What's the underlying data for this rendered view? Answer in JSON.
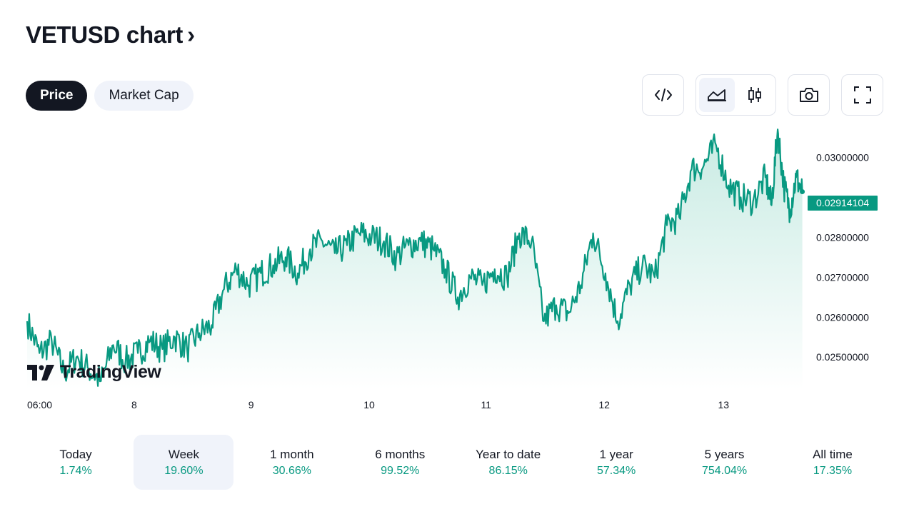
{
  "header": {
    "title": "VETUSD chart",
    "chevron": "›"
  },
  "tabs": [
    {
      "label": "Price",
      "active": true
    },
    {
      "label": "Market Cap",
      "active": false
    }
  ],
  "toolbar": {
    "icons": [
      "embed-code-icon",
      "area-chart-icon",
      "candlestick-icon",
      "camera-icon",
      "fullscreen-icon"
    ]
  },
  "chart_data": {
    "type": "area",
    "symbol": "VETUSD",
    "current_price_label": "0.02914104",
    "y_ticks": [
      "0.03000000",
      "0.02800000",
      "0.02700000",
      "0.02600000",
      "0.02500000"
    ],
    "x_ticks": [
      "06:00",
      "8",
      "9",
      "10",
      "11",
      "12",
      "13"
    ],
    "ylim": [
      0.0242,
      0.0309
    ],
    "xlim": [
      0,
      6.32
    ],
    "x": [
      0.0,
      0.1,
      0.2,
      0.3,
      0.4,
      0.5,
      0.6,
      0.7,
      0.8,
      0.9,
      1.0,
      1.1,
      1.2,
      1.3,
      1.4,
      1.5,
      1.6,
      1.7,
      1.8,
      1.9,
      2.0,
      2.1,
      2.2,
      2.3,
      2.4,
      2.5,
      2.6,
      2.7,
      2.8,
      2.9,
      3.0,
      3.1,
      3.2,
      3.3,
      3.4,
      3.5,
      3.6,
      3.7,
      3.8,
      3.9,
      4.0,
      4.1,
      4.2,
      4.3,
      4.4,
      4.5,
      4.6,
      4.7,
      4.8,
      4.9,
      5.0,
      5.1,
      5.2,
      5.3,
      5.4,
      5.5,
      5.6,
      5.7,
      5.8,
      5.9,
      6.0,
      6.05,
      6.1,
      6.15,
      6.2,
      6.25,
      6.3
    ],
    "values": [
      0.0259,
      0.0251,
      0.0254,
      0.0246,
      0.025,
      0.0247,
      0.0244,
      0.0253,
      0.0249,
      0.0251,
      0.0254,
      0.0252,
      0.0255,
      0.0252,
      0.0256,
      0.0258,
      0.0267,
      0.0272,
      0.0268,
      0.0271,
      0.0273,
      0.0275,
      0.0271,
      0.0277,
      0.0279,
      0.0276,
      0.0278,
      0.0281,
      0.028,
      0.0279,
      0.0275,
      0.0278,
      0.0279,
      0.0277,
      0.0272,
      0.0265,
      0.027,
      0.0268,
      0.0272,
      0.027,
      0.0281,
      0.0279,
      0.0259,
      0.0263,
      0.0261,
      0.0268,
      0.0281,
      0.0271,
      0.0259,
      0.0268,
      0.0273,
      0.027,
      0.0283,
      0.0285,
      0.0297,
      0.0298,
      0.0303,
      0.0293,
      0.029,
      0.0289,
      0.0295,
      0.0288,
      0.0307,
      0.0293,
      0.0287,
      0.0295,
      0.02914
    ],
    "line_color": "#089981",
    "fill_top_color": "#c8ebe3",
    "fill_bottom_color": "#ffffff",
    "grid": false,
    "legend": "none"
  },
  "watermark": {
    "text": "TradingView"
  },
  "periods": [
    {
      "label": "Today",
      "value": "1.74%",
      "active": false
    },
    {
      "label": "Week",
      "value": "19.60%",
      "active": true
    },
    {
      "label": "1 month",
      "value": "30.66%",
      "active": false
    },
    {
      "label": "6 months",
      "value": "99.52%",
      "active": false
    },
    {
      "label": "Year to date",
      "value": "86.15%",
      "active": false
    },
    {
      "label": "1 year",
      "value": "57.34%",
      "active": false
    },
    {
      "label": "5 years",
      "value": "754.04%",
      "active": false
    },
    {
      "label": "All time",
      "value": "17.35%",
      "active": false
    }
  ]
}
